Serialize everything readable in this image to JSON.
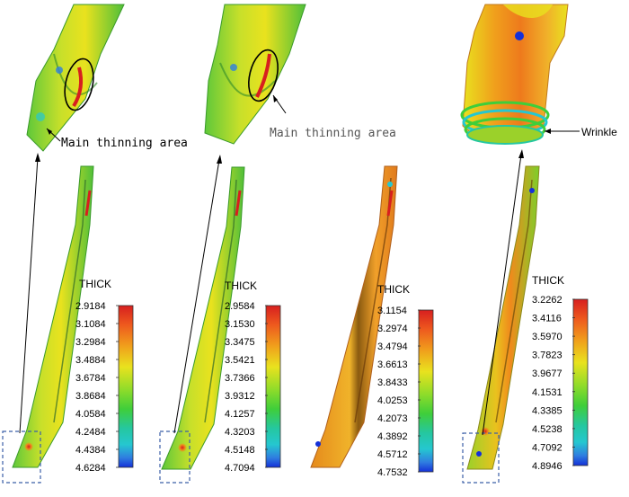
{
  "annotations": {
    "thinning_1": "Main thinning area",
    "thinning_2": "Main thinning area",
    "wrinkle": "Wrinkle"
  },
  "legends": [
    {
      "title": "THICK",
      "values": [
        "2.9184",
        "3.1084",
        "3.2984",
        "3.4884",
        "3.6784",
        "3.8684",
        "4.0584",
        "4.2484",
        "4.4384",
        "4.6284"
      ]
    },
    {
      "title": "THICK",
      "values": [
        "2.9584",
        "3.1530",
        "3.3475",
        "3.5421",
        "3.7366",
        "3.9312",
        "4.1257",
        "4.3203",
        "4.5148",
        "4.7094"
      ]
    },
    {
      "title": "THICK",
      "values": [
        "3.1154",
        "3.2974",
        "3.4794",
        "3.6613",
        "3.8433",
        "4.0253",
        "4.2073",
        "4.3892",
        "4.5712",
        "4.7532"
      ]
    },
    {
      "title": "THICK",
      "values": [
        "3.2262",
        "3.4116",
        "3.5970",
        "3.7823",
        "3.9677",
        "4.1531",
        "4.3385",
        "4.5238",
        "4.7092",
        "4.8946"
      ]
    }
  ],
  "colors": {
    "scale_top": "#d71f1f",
    "scale_orange": "#f08a1c",
    "scale_yellow": "#e9e21e",
    "scale_green": "#3fce3a",
    "scale_cyan": "#25c7d0",
    "scale_blue": "#1430d8",
    "dashed_box": "#3b5fa8"
  }
}
